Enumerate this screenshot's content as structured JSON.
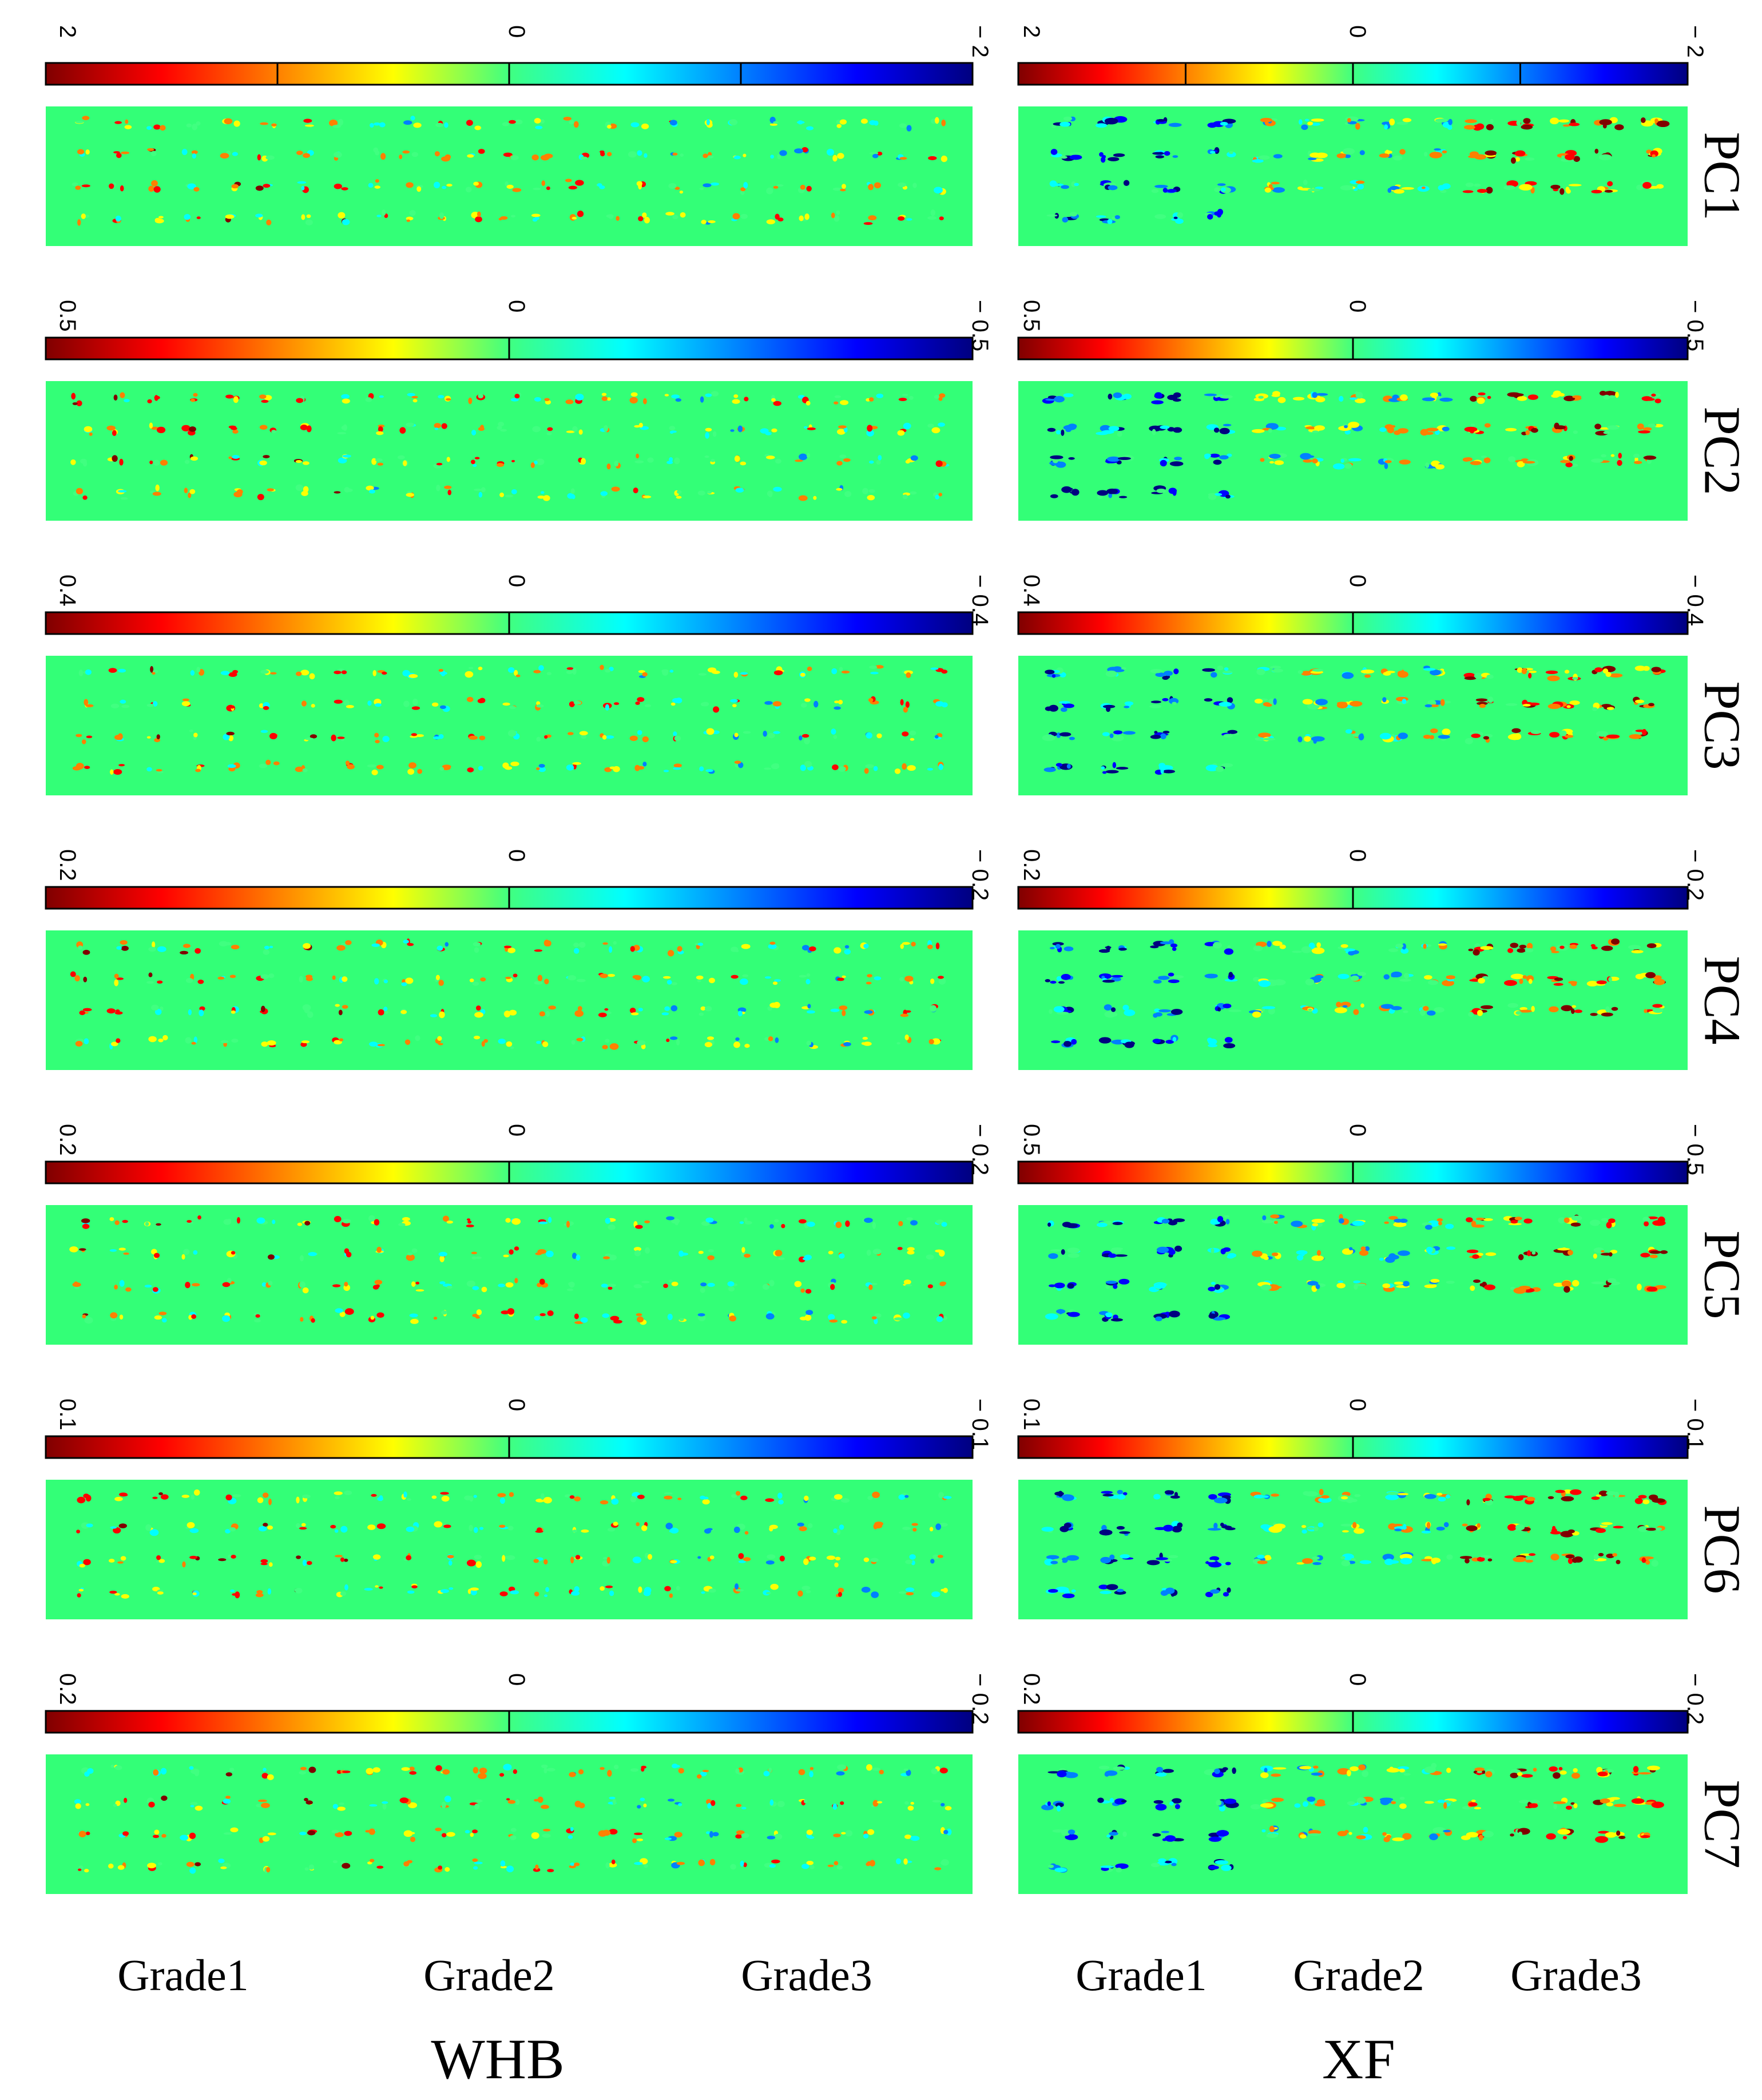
{
  "figure": {
    "colormap": [
      "#800000",
      "#ff0000",
      "#ff8000",
      "#ffff00",
      "#40ff80",
      "#00ffff",
      "#0080ff",
      "#0000ff",
      "#000080"
    ],
    "background_color": "#33ff77",
    "groups": [
      {
        "id": "whb",
        "label": "WHB",
        "grades": [
          "Grade1",
          "Grade2",
          "Grade3"
        ],
        "panels": [
          {
            "colorbar": {
              "left": "2",
              "center": "0",
              "right": "− 2"
            }
          },
          {
            "colorbar": {
              "left": "0.5",
              "center": "0",
              "right": "− 0.5"
            }
          },
          {
            "colorbar": {
              "left": "0.4",
              "center": "0",
              "right": "− 0.4"
            }
          },
          {
            "colorbar": {
              "left": "0.2",
              "center": "0",
              "right": "− 0.2"
            }
          },
          {
            "colorbar": {
              "left": "0.2",
              "center": "0",
              "right": "− 0.2"
            }
          },
          {
            "colorbar": {
              "left": "0.1",
              "center": "0",
              "right": "− 0.1"
            }
          },
          {
            "colorbar": {
              "left": "0.2",
              "center": "0",
              "right": "− 0.2"
            }
          }
        ]
      },
      {
        "id": "xf",
        "label": "XF",
        "grades": [
          "Grade1",
          "Grade2",
          "Grade3"
        ],
        "panels": [
          {
            "pc": "PC1",
            "colorbar": {
              "left": "2",
              "center": "0",
              "right": "− 2"
            }
          },
          {
            "pc": "PC2",
            "colorbar": {
              "left": "0.5",
              "center": "0",
              "right": "− 0.5"
            }
          },
          {
            "pc": "PC3",
            "colorbar": {
              "left": "0.4",
              "center": "0",
              "right": "− 0.4"
            }
          },
          {
            "pc": "PC4",
            "colorbar": {
              "left": "0.2",
              "center": "0",
              "right": "− 0.2"
            }
          },
          {
            "pc": "PC5",
            "colorbar": {
              "left": "0.5",
              "center": "0",
              "right": "− 0.5"
            }
          },
          {
            "pc": "PC6",
            "colorbar": {
              "left": "0.1",
              "center": "0",
              "right": "− 0.1"
            }
          },
          {
            "pc": "PC7",
            "colorbar": {
              "left": "0.2",
              "center": "0",
              "right": "− 0.2"
            }
          }
        ]
      }
    ]
  }
}
